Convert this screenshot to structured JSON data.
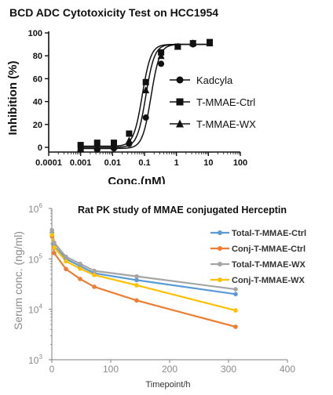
{
  "chart_data": [
    {
      "type": "scatter",
      "title": "BCD ADC Cytotoxicity Test on HCC1954",
      "xlabel": "Conc.(nM)",
      "ylabel": "Inhibition (%)",
      "xscale": "log",
      "xlim": [
        0.0001,
        100
      ],
      "ylim": [
        -5,
        100
      ],
      "x_tick_labels": [
        "0.0001",
        "0.001",
        "0.01",
        "0.1",
        "1",
        "10",
        "100"
      ],
      "y_tick_labels": [
        "0",
        "20",
        "40",
        "60",
        "80",
        "100"
      ],
      "legend_position": "right",
      "series": [
        {
          "name": "Kadcyla",
          "marker": "circle",
          "x": [
            0.001,
            0.0033,
            0.011,
            0.033,
            0.11,
            0.33,
            1.1,
            3.3,
            11
          ],
          "y": [
            -2,
            -2,
            -1,
            3,
            26,
            73,
            88,
            90,
            91
          ],
          "fit": {
            "bottom": -1,
            "top": 90,
            "ec50": 0.16,
            "hill": 3.2
          }
        },
        {
          "name": "T-MMAE-Ctrl",
          "marker": "square",
          "x": [
            0.001,
            0.0033,
            0.011,
            0.033,
            0.11,
            0.33,
            1.1,
            3.3,
            11
          ],
          "y": [
            2,
            4,
            4,
            12,
            57,
            83,
            88,
            91,
            92
          ],
          "fit": {
            "bottom": 1,
            "top": 90,
            "ec50": 0.085,
            "hill": 3.2
          }
        },
        {
          "name": "T-MMAE-WX",
          "marker": "triangle",
          "x": [
            0.001,
            0.0033,
            0.011,
            0.033,
            0.11,
            0.33,
            1.1,
            3.3,
            11
          ],
          "y": [
            -1,
            0,
            1,
            6,
            50,
            80,
            88,
            91,
            91
          ],
          "fit": {
            "bottom": 0,
            "top": 90,
            "ec50": 0.11,
            "hill": 3.2
          }
        }
      ],
      "colors": {
        "marker": "#111111",
        "line": "#111111"
      }
    },
    {
      "type": "line",
      "title": "Rat PK study of MMAE conjugated Herceptin",
      "xlabel": "Timepoint/h",
      "ylabel": "Serum conc. (ng/ml)",
      "yscale": "log",
      "xlim": [
        0,
        400
      ],
      "ylim": [
        1000,
        1000000
      ],
      "x_tick_labels": [
        "0",
        "100",
        "200",
        "300",
        "400"
      ],
      "y_tick_labels": [
        {
          "base": "10",
          "exp": "3",
          "value": 1000
        },
        {
          "base": "10",
          "exp": "4",
          "value": 10000
        },
        {
          "base": "10",
          "exp": "5",
          "value": 100000
        },
        {
          "base": "10",
          "exp": "6",
          "value": 1000000
        }
      ],
      "legend_position": "top-right",
      "x": [
        0.25,
        4,
        24,
        48,
        72,
        144,
        312
      ],
      "series": [
        {
          "name": "Total-T-MMAE-Ctrl",
          "color": "#5b9bd5",
          "values": [
            330000,
            180000,
            100000,
            72000,
            52000,
            38000,
            20000
          ]
        },
        {
          "name": "Conj-T-MMAE-Ctrl",
          "color": "#ed7d31",
          "values": [
            280000,
            130000,
            63000,
            40000,
            28000,
            15000,
            4500
          ]
        },
        {
          "name": "Total-T-MMAE-WX",
          "color": "#a5a5a5",
          "values": [
            370000,
            210000,
            110000,
            80000,
            58000,
            45000,
            25000
          ]
        },
        {
          "name": "Conj-T-MMAE-WX",
          "color": "#ffc000",
          "values": [
            300000,
            170000,
            90000,
            64000,
            48000,
            30000,
            9500
          ]
        }
      ],
      "grid": false
    }
  ]
}
